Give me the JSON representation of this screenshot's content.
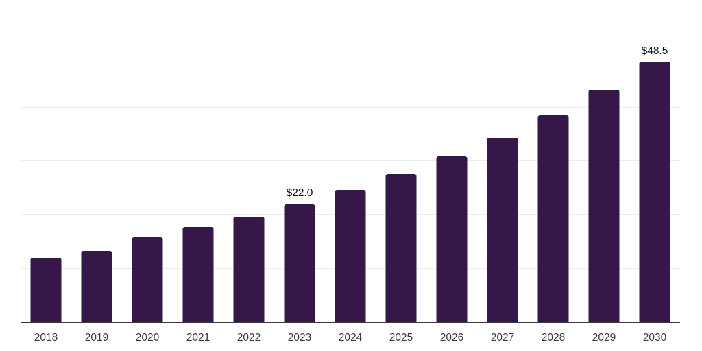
{
  "chart_data": {
    "type": "bar",
    "categories": [
      "2018",
      "2019",
      "2020",
      "2021",
      "2022",
      "2023",
      "2024",
      "2025",
      "2026",
      "2027",
      "2028",
      "2029",
      "2030"
    ],
    "values": [
      12.0,
      13.3,
      15.8,
      17.7,
      19.6,
      22.0,
      24.6,
      27.6,
      30.9,
      34.4,
      38.6,
      43.3,
      48.5
    ],
    "value_labels": [
      "",
      "",
      "",
      "",
      "",
      "$22.0",
      "",
      "",
      "",
      "",
      "",
      "",
      "$48.5"
    ],
    "value_unit": "$",
    "ylim": [
      0,
      60
    ],
    "grid": true,
    "grid_step": 10,
    "legend_position": "none",
    "colors": {
      "bar": "#36174a",
      "gridline": "#ededed",
      "axis_line": "#3a3a3a",
      "tick_label": "#3a3a3a",
      "value_label": "#0d0d0d",
      "background": "#ffffff"
    }
  }
}
